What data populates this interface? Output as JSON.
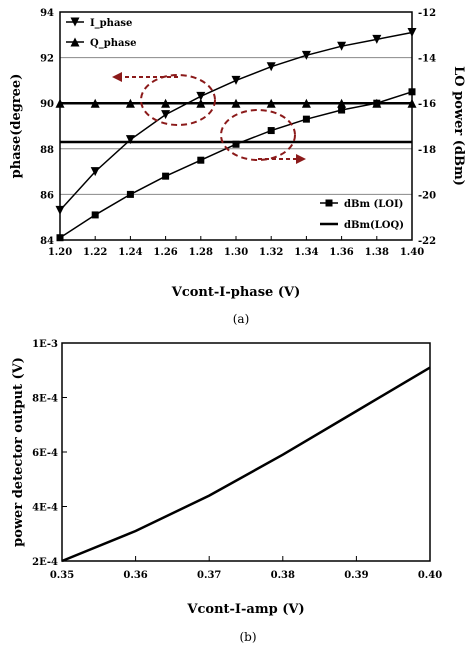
{
  "chart_data": [
    {
      "type": "line",
      "caption": "(a)",
      "xlabel": "Vcont-I-phase  (V)",
      "ylabel": "phase(degree)",
      "y2label": "LO power (dBm)",
      "xlim": [
        1.2,
        1.4
      ],
      "ylim": [
        84,
        94
      ],
      "y2lim": [
        -22,
        -12
      ],
      "x_ticks": [
        "1.20",
        "1.22",
        "1.24",
        "1.26",
        "1.28",
        "1.30",
        "1.32",
        "1.34",
        "1.36",
        "1.38",
        "1.40"
      ],
      "y_ticks": [
        "84",
        "86",
        "88",
        "90",
        "92",
        "94"
      ],
      "y2_ticks": [
        "-22",
        "-20",
        "-18",
        "-16",
        "-14",
        "-12"
      ],
      "grid": "horizontal",
      "legend_left": "top-left",
      "legend_right": "bottom-right",
      "series": [
        {
          "name": "I_phase",
          "axis": "left",
          "marker": "triangle-down",
          "x": [
            1.2,
            1.22,
            1.24,
            1.26,
            1.28,
            1.3,
            1.32,
            1.34,
            1.36,
            1.38,
            1.4
          ],
          "values": [
            85.3,
            87.0,
            88.4,
            89.5,
            90.3,
            91.0,
            91.6,
            92.1,
            92.5,
            92.8,
            93.1
          ]
        },
        {
          "name": "Q_phase",
          "axis": "left",
          "marker": "triangle-up",
          "x": [
            1.2,
            1.22,
            1.24,
            1.26,
            1.28,
            1.3,
            1.32,
            1.34,
            1.36,
            1.38,
            1.4
          ],
          "values": [
            90.0,
            90.0,
            90.0,
            90.0,
            90.0,
            90.0,
            90.0,
            90.0,
            90.0,
            90.0,
            90.0
          ]
        },
        {
          "name": "dBm (LOI)",
          "axis": "right",
          "marker": "square",
          "x": [
            1.2,
            1.22,
            1.24,
            1.26,
            1.28,
            1.3,
            1.32,
            1.34,
            1.36,
            1.38,
            1.4
          ],
          "values": [
            -21.9,
            -20.9,
            -20.0,
            -19.2,
            -18.5,
            -17.8,
            -17.2,
            -16.7,
            -16.3,
            -16.0,
            -15.5
          ]
        },
        {
          "name": "dBm(LOQ)",
          "axis": "right",
          "marker": "none",
          "x": [
            1.2,
            1.4
          ],
          "values": [
            -17.7,
            -17.7
          ]
        }
      ]
    },
    {
      "type": "line",
      "caption": "(b)",
      "xlabel": "Vcont-I-amp   (V)",
      "ylabel": "power detector output (V)",
      "xlim": [
        0.35,
        0.4
      ],
      "ylim": [
        0.0002,
        0.001
      ],
      "x_ticks": [
        "0.35",
        "0.36",
        "0.37",
        "0.38",
        "0.39",
        "0.40"
      ],
      "y_ticks": [
        "2E-4",
        "4E-4",
        "6E-4",
        "8E-4",
        "1E-3"
      ],
      "grid": "none",
      "series": [
        {
          "x": [
            0.35,
            0.36,
            0.37,
            0.38,
            0.39,
            0.4
          ],
          "values": [
            0.0002,
            0.00031,
            0.00044,
            0.00059,
            0.00075,
            0.00091
          ]
        }
      ]
    }
  ]
}
